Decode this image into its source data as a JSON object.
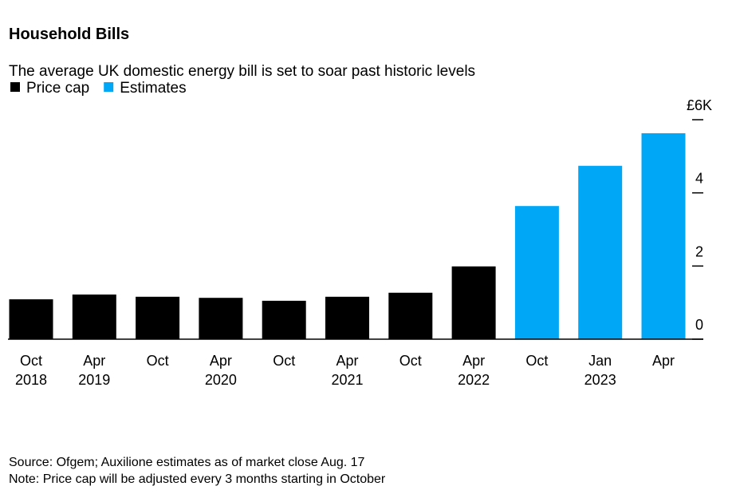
{
  "chart_data": {
    "type": "bar",
    "title": "Household Bills",
    "subtitle": "The average UK domestic energy bill is set to soar past historic levels",
    "categories": [
      "Oct",
      "Apr",
      "Oct",
      "Apr",
      "Oct",
      "Apr",
      "Oct",
      "Apr",
      "Oct",
      "Jan",
      "Apr"
    ],
    "category_years": [
      "2018",
      "2019",
      null,
      "2020",
      null,
      "2021",
      null,
      "2022",
      null,
      "2023",
      null
    ],
    "series": [
      {
        "name": "Price cap",
        "color": "#000000",
        "values": [
          1.09,
          1.22,
          1.16,
          1.13,
          1.05,
          1.16,
          1.27,
          1.99,
          null,
          null,
          null
        ]
      },
      {
        "name": "Estimates",
        "color": "#00a7f7",
        "values": [
          null,
          null,
          null,
          null,
          null,
          null,
          null,
          null,
          3.64,
          4.74,
          5.63
        ]
      }
    ],
    "ylim": [
      0,
      6
    ],
    "yticks": [
      0,
      2,
      4,
      {
        "value": 6,
        "label": "£6K"
      }
    ],
    "source": "Source: Ofgem; Auxilione estimates as of market close Aug. 17",
    "note": "Note: Price cap will be adjusted every 3 months starting in October"
  }
}
